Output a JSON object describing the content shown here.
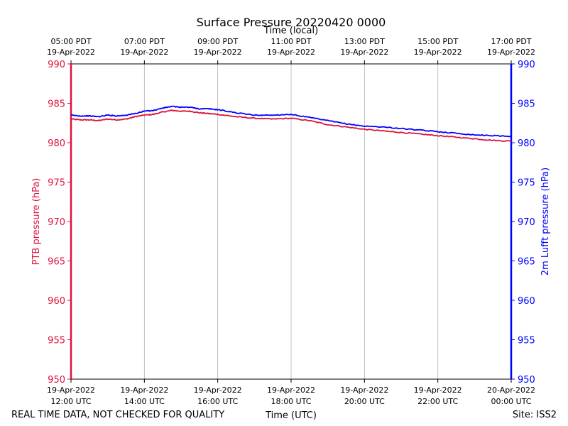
{
  "chart_data": {
    "type": "line",
    "title": "Surface Pressure 20220420 0000",
    "top_axis_label": "Time (local)",
    "xlabel": "Time (UTC)",
    "ylabel_left": "PTB pressure (hPa)",
    "ylabel_right": "2m Lufft pressure (hPa)",
    "footer_left": "REAL TIME DATA, NOT CHECKED FOR QUALITY",
    "footer_right": "Site: ISS2",
    "xlim_hours": [
      0,
      12
    ],
    "ylim": [
      950,
      990
    ],
    "grid": "vertical",
    "y_ticks": [
      950,
      955,
      960,
      965,
      970,
      975,
      980,
      985,
      990
    ],
    "x_ticks_utc": [
      {
        "hour": 0,
        "date": "19-Apr-2022",
        "time": "12:00 UTC"
      },
      {
        "hour": 2,
        "date": "19-Apr-2022",
        "time": "14:00 UTC"
      },
      {
        "hour": 4,
        "date": "19-Apr-2022",
        "time": "16:00 UTC"
      },
      {
        "hour": 6,
        "date": "19-Apr-2022",
        "time": "18:00 UTC"
      },
      {
        "hour": 8,
        "date": "19-Apr-2022",
        "time": "20:00 UTC"
      },
      {
        "hour": 10,
        "date": "19-Apr-2022",
        "time": "22:00 UTC"
      },
      {
        "hour": 12,
        "date": "20-Apr-2022",
        "time": "00:00 UTC"
      }
    ],
    "x_ticks_local": [
      {
        "hour": 0,
        "time": "05:00 PDT",
        "date": "19-Apr-2022"
      },
      {
        "hour": 2,
        "time": "07:00 PDT",
        "date": "19-Apr-2022"
      },
      {
        "hour": 4,
        "time": "09:00 PDT",
        "date": "19-Apr-2022"
      },
      {
        "hour": 6,
        "time": "11:00 PDT",
        "date": "19-Apr-2022"
      },
      {
        "hour": 8,
        "time": "13:00 PDT",
        "date": "19-Apr-2022"
      },
      {
        "hour": 10,
        "time": "15:00 PDT",
        "date": "19-Apr-2022"
      },
      {
        "hour": 12,
        "time": "17:00 PDT",
        "date": "19-Apr-2022"
      }
    ],
    "series": [
      {
        "name": "PTB pressure",
        "color": "#dc143c",
        "axis": "left",
        "x": [
          0,
          0.25,
          0.5,
          0.75,
          1.0,
          1.25,
          1.5,
          1.75,
          2.0,
          2.25,
          2.5,
          2.75,
          3.0,
          3.25,
          3.5,
          3.75,
          4.0,
          4.5,
          5.0,
          5.5,
          6.0,
          6.5,
          7.0,
          7.5,
          8.0,
          8.5,
          9.0,
          9.5,
          10.0,
          10.5,
          11.0,
          11.5,
          12.0
        ],
        "values": [
          983.0,
          982.9,
          982.9,
          982.8,
          983.0,
          982.9,
          983.0,
          983.3,
          983.5,
          983.6,
          983.9,
          984.1,
          984.0,
          984.0,
          983.8,
          983.7,
          983.6,
          983.3,
          983.1,
          983.0,
          983.1,
          982.8,
          982.3,
          982.0,
          981.7,
          981.5,
          981.3,
          981.1,
          980.9,
          980.7,
          980.5,
          980.3,
          980.2
        ]
      },
      {
        "name": "2m Lufft pressure",
        "color": "#0000ff",
        "axis": "right",
        "x": [
          0,
          0.25,
          0.5,
          0.75,
          1.0,
          1.25,
          1.5,
          1.75,
          2.0,
          2.25,
          2.5,
          2.75,
          3.0,
          3.25,
          3.5,
          3.75,
          4.0,
          4.5,
          5.0,
          5.5,
          6.0,
          6.5,
          7.0,
          7.5,
          8.0,
          8.5,
          9.0,
          9.5,
          10.0,
          10.5,
          11.0,
          11.5,
          12.0
        ],
        "values": [
          983.5,
          983.4,
          983.4,
          983.3,
          983.5,
          983.4,
          983.5,
          983.7,
          984.0,
          984.1,
          984.4,
          984.6,
          984.5,
          984.5,
          984.3,
          984.3,
          984.2,
          983.8,
          983.5,
          983.5,
          983.6,
          983.2,
          982.8,
          982.4,
          982.1,
          982.0,
          981.8,
          981.6,
          981.4,
          981.2,
          981.0,
          980.9,
          980.8
        ]
      }
    ]
  }
}
